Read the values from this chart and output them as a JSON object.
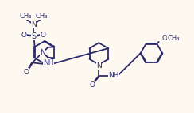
{
  "bg_color": "#fdf8f0",
  "line_color": "#2b2b6b",
  "lw": 1.3,
  "fs": 6.5,
  "xlim": [
    0,
    10
  ],
  "ylim": [
    0,
    6
  ]
}
